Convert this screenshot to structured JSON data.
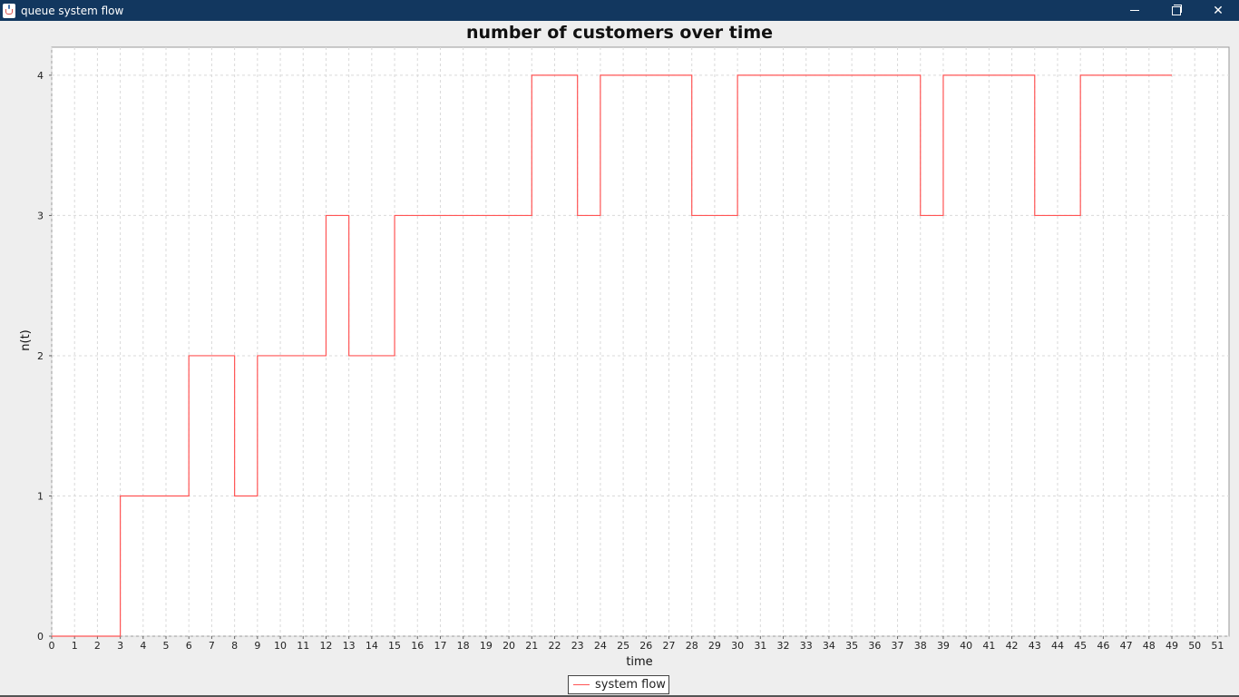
{
  "window": {
    "title": "queue system flow",
    "icon": "java-cup-icon",
    "controls": {
      "minimize_icon": "minimize-icon",
      "maximize_icon": "restore-icon",
      "close_icon": "close-icon",
      "close_glyph": "✕"
    },
    "titlebar_color": "#12375f"
  },
  "chart_data": {
    "type": "line",
    "step": true,
    "title": "number of customers over time",
    "xlabel": "time",
    "ylabel": "n(t)",
    "xlim": [
      0,
      51.5
    ],
    "ylim": [
      0,
      4.2
    ],
    "x_ticks": [
      0,
      1,
      2,
      3,
      4,
      5,
      6,
      7,
      8,
      9,
      10,
      11,
      12,
      13,
      14,
      15,
      16,
      17,
      18,
      19,
      20,
      21,
      22,
      23,
      24,
      25,
      26,
      27,
      28,
      29,
      30,
      31,
      32,
      33,
      34,
      35,
      36,
      37,
      38,
      39,
      40,
      41,
      42,
      43,
      44,
      45,
      46,
      47,
      48,
      49,
      50,
      51
    ],
    "y_ticks": [
      0,
      1,
      2,
      3,
      4
    ],
    "grid": true,
    "legend_position": "bottom-center",
    "series": [
      {
        "name": "system flow",
        "color": "#ff5555",
        "x": [
          0,
          3,
          6,
          8,
          9,
          12,
          13,
          15,
          21,
          23,
          24,
          28,
          30,
          38,
          39,
          43,
          45,
          49
        ],
        "y": [
          0,
          1,
          2,
          1,
          2,
          3,
          2,
          3,
          4,
          3,
          4,
          3,
          4,
          3,
          4,
          3,
          4,
          4
        ]
      }
    ]
  }
}
